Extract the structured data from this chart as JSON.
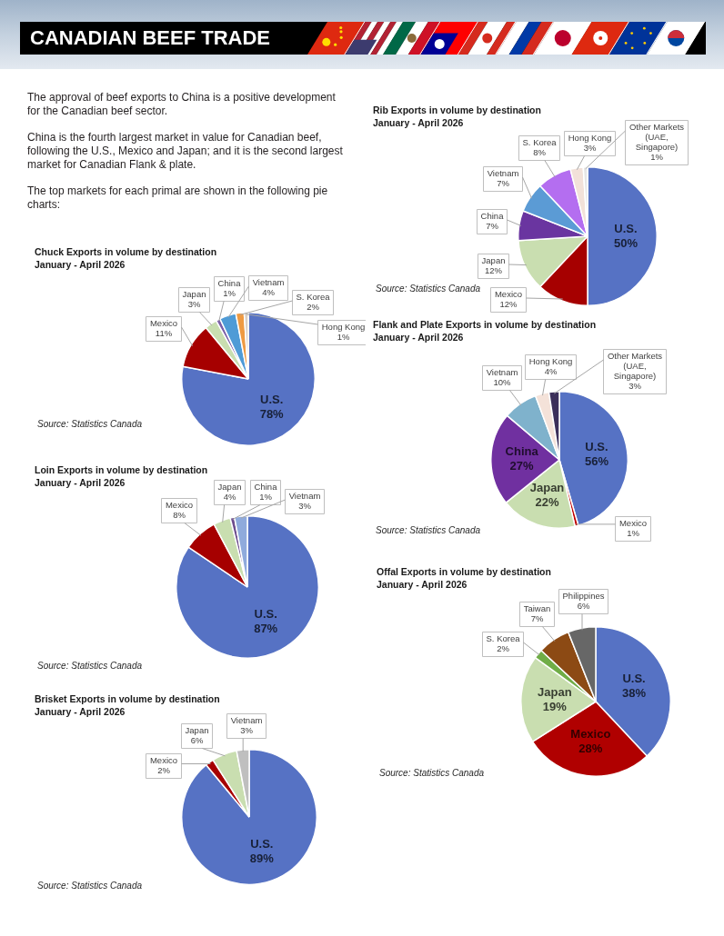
{
  "chart_data": [
    {
      "type": "other",
      "title": "CANADIAN BEEF TRADE",
      "annotations": [
        "The approval of beef exports to China is a positive development for the Canadian beef sector.",
        "China is the fourth largest market in value for Canadian beef, following the U.S., Mexico and Japan; and it is the second largest market for Canadian Flank & plate.",
        "The top markets for each primal are shown in the following pie charts:"
      ]
    },
    {
      "type": "pie",
      "title": "Chuck Exports in volume by destination",
      "subtitle": "January - April 2026",
      "categories": [
        "U.S.",
        "Mexico",
        "Japan",
        "China",
        "Vietnam",
        "S. Korea",
        "Hong Kong"
      ],
      "values": [
        78,
        11,
        3,
        1,
        4,
        2,
        1
      ],
      "value_labels": [
        "78%",
        "11%",
        "3%",
        "1%",
        "4%",
        "2%",
        "1%"
      ],
      "colors": [
        "#5672c4",
        "#a60000",
        "#c9deb0",
        "#7b5ea8",
        "#4f9bd6",
        "#ee9a43",
        "#d9d0c8"
      ],
      "annotations": [
        "Source: Statistics Canada"
      ]
    },
    {
      "type": "pie",
      "title": "Loin Exports in volume by destination",
      "subtitle": "January - April 2026",
      "categories": [
        "U.S.",
        "Mexico",
        "Japan",
        "China",
        "Vietnam"
      ],
      "values": [
        87,
        8,
        4,
        1,
        3
      ],
      "value_labels": [
        "87%",
        "8%",
        "4%",
        "1%",
        "3%"
      ],
      "colors": [
        "#5672c4",
        "#a60000",
        "#c9deb0",
        "#6e4d8e",
        "#8faadc"
      ],
      "annotations": [
        "Source: Statistics Canada"
      ]
    },
    {
      "type": "pie",
      "title": "Brisket Exports in volume by destination",
      "subtitle": "January - April 2026",
      "categories": [
        "U.S.",
        "Mexico",
        "Japan",
        "Vietnam"
      ],
      "values": [
        89,
        2,
        6,
        3
      ],
      "value_labels": [
        "89%",
        "2%",
        "6%",
        "3%"
      ],
      "colors": [
        "#5672c4",
        "#a60000",
        "#c9deb0",
        "#bfbfbf"
      ],
      "annotations": [
        "Source: Statistics Canada"
      ]
    },
    {
      "type": "pie",
      "title": "Rib Exports in volume by destination",
      "subtitle": "January - April 2026",
      "categories": [
        "U.S.",
        "Mexico",
        "Japan",
        "China",
        "Vietnam",
        "S. Korea",
        "Hong Kong",
        "Other Markets (UAE, Singapore)"
      ],
      "values": [
        50,
        12,
        12,
        7,
        7,
        8,
        3,
        1
      ],
      "value_labels": [
        "50%",
        "12%",
        "12%",
        "7%",
        "7%",
        "8%",
        "3%",
        "1%"
      ],
      "colors": [
        "#5672c4",
        "#a60000",
        "#c9deb0",
        "#6a35a0",
        "#5b9bd5",
        "#b46ef0",
        "#f2e1d9",
        "#e6e6e6"
      ],
      "annotations": [
        "Source: Statistics Canada"
      ]
    },
    {
      "type": "pie",
      "title": "Flank and Plate Exports in volume by destination",
      "subtitle": "January - April 2026",
      "categories": [
        "U.S.",
        "Mexico",
        "Japan",
        "China",
        "Vietnam",
        "Hong Kong",
        "Other Markets (UAE, Singapore)"
      ],
      "values": [
        56,
        1,
        22,
        27,
        10,
        4,
        3
      ],
      "value_labels": [
        "56%",
        "1%",
        "22%",
        "27%",
        "10%",
        "4%",
        "3%"
      ],
      "colors": [
        "#5672c4",
        "#c00000",
        "#c9deb0",
        "#7030a0",
        "#7fb2cc",
        "#f4e2d9",
        "#3b2f5a"
      ],
      "annotations": [
        "Source: Statistics Canada"
      ]
    },
    {
      "type": "pie",
      "title": "Offal Exports in volume by destination",
      "subtitle": "January - April 2026",
      "categories": [
        "U.S.",
        "Mexico",
        "Japan",
        "S. Korea",
        "Taiwan",
        "Philippines"
      ],
      "values": [
        38,
        28,
        19,
        2,
        7,
        6
      ],
      "value_labels": [
        "38%",
        "28%",
        "19%",
        "2%",
        "7%",
        "6%"
      ],
      "colors": [
        "#5672c4",
        "#b00000",
        "#c9deb0",
        "#70ad47",
        "#8c4a14",
        "#676767"
      ],
      "annotations": [
        "Source: Statistics Canada"
      ]
    }
  ]
}
